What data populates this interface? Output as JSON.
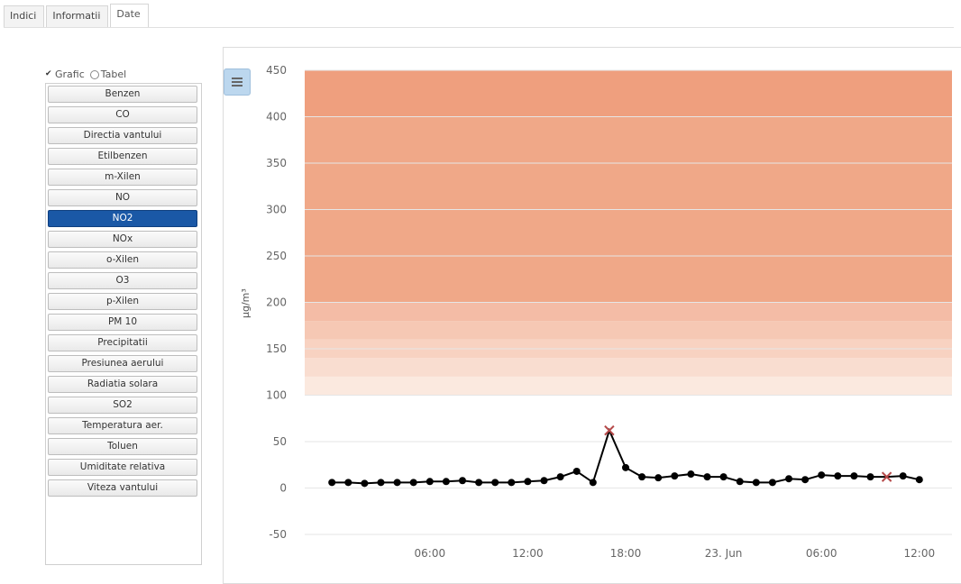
{
  "tabs": [
    {
      "label": "Indici"
    },
    {
      "label": "Informatii"
    },
    {
      "label": "Date"
    }
  ],
  "view_toggle": {
    "graph_label": "Grafic",
    "table_label": "Tabel",
    "selected": "Grafic"
  },
  "pollutants": [
    {
      "label": "Benzen"
    },
    {
      "label": "CO"
    },
    {
      "label": "Directia vantului"
    },
    {
      "label": "Etilbenzen"
    },
    {
      "label": "m-Xilen"
    },
    {
      "label": "NO"
    },
    {
      "label": "NO2",
      "selected": true
    },
    {
      "label": "NOx"
    },
    {
      "label": "o-Xilen"
    },
    {
      "label": "O3"
    },
    {
      "label": "p-Xilen"
    },
    {
      "label": "PM 10"
    },
    {
      "label": "Precipitatii"
    },
    {
      "label": "Presiunea aerului"
    },
    {
      "label": "Radiatia solara"
    },
    {
      "label": "SO2"
    },
    {
      "label": "Temperatura aer."
    },
    {
      "label": "Toluen"
    },
    {
      "label": "Umiditate relativa"
    },
    {
      "label": "Viteza vantului"
    }
  ],
  "chart": {
    "ylabel": "µg/m³",
    "menu_icon": "menu-icon"
  },
  "chart_data": {
    "type": "line",
    "ylabel": "µg/m³",
    "ylim": [
      -50,
      450
    ],
    "yticks": [
      -50,
      0,
      50,
      100,
      150,
      200,
      250,
      300,
      350,
      400,
      450
    ],
    "xlim": [
      -2,
      38
    ],
    "xticks": [
      {
        "x": 6,
        "label": "06:00"
      },
      {
        "x": 12,
        "label": "12:00"
      },
      {
        "x": 18,
        "label": "18:00"
      },
      {
        "x": 24,
        "label": "23. Jun"
      },
      {
        "x": 30,
        "label": "06:00"
      },
      {
        "x": 36,
        "label": "12:00"
      }
    ],
    "bands": [
      {
        "from": 100,
        "to": 120,
        "color": "#fbe9df"
      },
      {
        "from": 120,
        "to": 140,
        "color": "#f9ddd0"
      },
      {
        "from": 140,
        "to": 160,
        "color": "#f8d2c1"
      },
      {
        "from": 160,
        "to": 180,
        "color": "#f6c8b4"
      },
      {
        "from": 180,
        "to": 200,
        "color": "#f4bca6"
      },
      {
        "from": 200,
        "to": 450,
        "color": "#f0a888"
      },
      {
        "from": 400,
        "to": 450,
        "color": "#ef9f7e"
      }
    ],
    "grid": true,
    "series": [
      {
        "color": "#000000",
        "x": [
          0,
          1,
          2,
          3,
          4,
          5,
          6,
          7,
          8,
          9,
          10,
          11,
          12,
          13,
          14,
          15,
          16,
          17,
          18,
          19,
          20,
          21,
          22,
          23,
          24,
          25,
          26,
          27,
          28,
          29,
          30,
          31,
          32,
          33,
          34,
          35,
          36
        ],
        "y": [
          6,
          6,
          5,
          6,
          6,
          6,
          7,
          7,
          8,
          6,
          6,
          6,
          7,
          8,
          12,
          18,
          6,
          62,
          22,
          12,
          11,
          13,
          15,
          12,
          12,
          7,
          6,
          6,
          10,
          9,
          14,
          13,
          13,
          12,
          12,
          13,
          9
        ],
        "marker_x": [
          17,
          34
        ]
      }
    ]
  }
}
